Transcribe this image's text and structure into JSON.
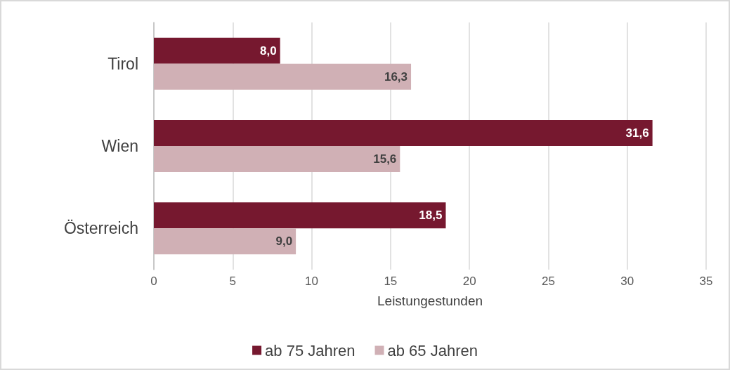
{
  "chart_data": {
    "type": "bar",
    "orientation": "horizontal",
    "xlabel": "Leistungestunden",
    "categories": [
      "Tirol",
      "Wien",
      "Österreich"
    ],
    "series": [
      {
        "name": "ab 75 Jahren",
        "color": "#76182f",
        "values": [
          8.0,
          31.6,
          18.5
        ],
        "value_labels": [
          "8,0",
          "31,6",
          "18,5"
        ]
      },
      {
        "name": "ab 65 Jahren",
        "color": "#d0b0b5",
        "values": [
          16.3,
          15.6,
          9.0
        ],
        "value_labels": [
          "16,3",
          "15,6",
          "9,0"
        ]
      }
    ],
    "xlim": [
      0,
      35
    ],
    "xticks": [
      0,
      5,
      10,
      15,
      20,
      25,
      30,
      35
    ],
    "grid": "x",
    "legend": "bottom"
  }
}
